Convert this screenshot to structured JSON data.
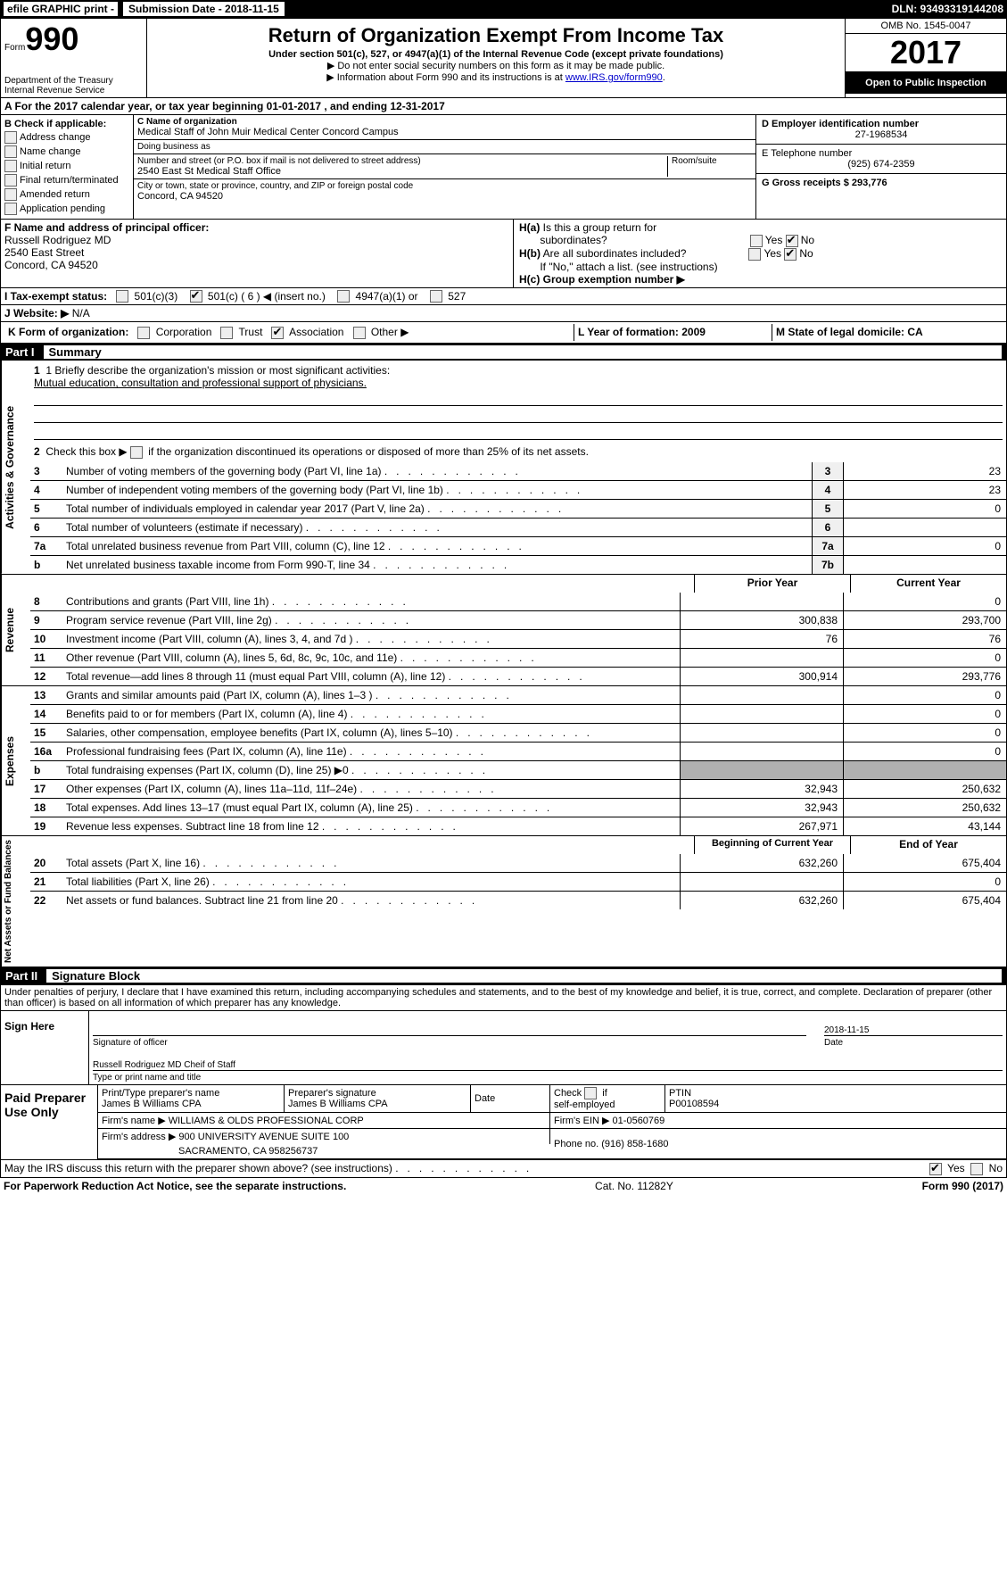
{
  "topbar": {
    "efile": "efile GRAPHIC print -",
    "subdate_label": "Submission Date - 2018-11-15",
    "dln": "DLN: 93493319144208"
  },
  "header": {
    "form_prefix": "Form",
    "form_number": "990",
    "dept1": "Department of the Treasury",
    "dept2": "Internal Revenue Service",
    "title": "Return of Organization Exempt From Income Tax",
    "subtitle": "Under section 501(c), 527, or 4947(a)(1) of the Internal Revenue Code (except private foundations)",
    "note1": "▶ Do not enter social security numbers on this form as it may be made public.",
    "note2_pre": "▶ Information about Form 990 and its instructions is at ",
    "note2_link": "www.IRS.gov/form990",
    "omb": "OMB No. 1545-0047",
    "year": "2017",
    "inspection": "Open to Public Inspection"
  },
  "section_a": "A  For the 2017 calendar year, or tax year beginning 01-01-2017   , and ending 12-31-2017",
  "col_b": {
    "title": "B Check if applicable:",
    "items": [
      "Address change",
      "Name change",
      "Initial return",
      "Final return/terminated",
      "Amended return",
      "Application pending"
    ]
  },
  "col_c": {
    "name_label": "C Name of organization",
    "name": "Medical Staff of John Muir Medical Center Concord Campus",
    "dba_label": "Doing business as",
    "dba": "",
    "addr_label": "Number and street (or P.O. box if mail is not delivered to street address)",
    "room_label": "Room/suite",
    "addr": "2540 East St Medical Staff Office",
    "city_label": "City or town, state or province, country, and ZIP or foreign postal code",
    "city": "Concord, CA  94520"
  },
  "col_d": {
    "ein_label": "D Employer identification number",
    "ein": "27-1968534",
    "phone_label": "E Telephone number",
    "phone": "(925) 674-2359",
    "gross_label": "G Gross receipts $ 293,776"
  },
  "officer": {
    "label": "F  Name and address of principal officer:",
    "name": "Russell Rodriguez MD",
    "addr1": "2540 East Street",
    "addr2": "Concord, CA  94520"
  },
  "h_section": {
    "ha": "H(a)  Is this a group return for subordinates?",
    "hb": "H(b)  Are all subordinates included?",
    "hb_note": "If \"No,\" attach a list. (see instructions)",
    "hc": "H(c)  Group exemption number ▶"
  },
  "tax_status": {
    "label": "I  Tax-exempt status:",
    "c3": "501(c)(3)",
    "c": "501(c) ( 6 ) ◀ (insert no.)",
    "a1": "4947(a)(1) or",
    "s527": "527"
  },
  "website": {
    "label": "J  Website: ▶",
    "value": " N/A"
  },
  "k_org": {
    "label": "K Form of organization:",
    "opts": [
      "Corporation",
      "Trust",
      "Association",
      "Other ▶"
    ],
    "l": "L Year of formation: 2009",
    "m": "M State of legal domicile: CA"
  },
  "part1": {
    "label": "Part I",
    "title": "Summary"
  },
  "governance": {
    "vlabel": "Activities & Governance",
    "l1_label": "1  Briefly describe the organization's mission or most significant activities:",
    "l1_text": "Mutual education, consultation and professional support of physicians.",
    "l2": "Check this box ▶        if the organization discontinued its operations or disposed of more than 25% of its net assets.",
    "lines": [
      {
        "n": "3",
        "d": "Number of voting members of the governing body (Part VI, line 1a)",
        "cn": "3",
        "v": "23"
      },
      {
        "n": "4",
        "d": "Number of independent voting members of the governing body (Part VI, line 1b)",
        "cn": "4",
        "v": "23"
      },
      {
        "n": "5",
        "d": "Total number of individuals employed in calendar year 2017 (Part V, line 2a)",
        "cn": "5",
        "v": "0"
      },
      {
        "n": "6",
        "d": "Total number of volunteers (estimate if necessary)",
        "cn": "6",
        "v": ""
      },
      {
        "n": "7a",
        "d": "Total unrelated business revenue from Part VIII, column (C), line 12",
        "cn": "7a",
        "v": "0"
      },
      {
        "n": "b",
        "d": "Net unrelated business taxable income from Form 990-T, line 34",
        "cn": "7b",
        "v": ""
      }
    ]
  },
  "revenue": {
    "vlabel": "Revenue",
    "hdr_prior": "Prior Year",
    "hdr_cur": "Current Year",
    "lines": [
      {
        "n": "8",
        "d": "Contributions and grants (Part VIII, line 1h)",
        "p": "",
        "c": "0"
      },
      {
        "n": "9",
        "d": "Program service revenue (Part VIII, line 2g)",
        "p": "300,838",
        "c": "293,700"
      },
      {
        "n": "10",
        "d": "Investment income (Part VIII, column (A), lines 3, 4, and 7d )",
        "p": "76",
        "c": "76"
      },
      {
        "n": "11",
        "d": "Other revenue (Part VIII, column (A), lines 5, 6d, 8c, 9c, 10c, and 11e)",
        "p": "",
        "c": "0"
      },
      {
        "n": "12",
        "d": "Total revenue—add lines 8 through 11 (must equal Part VIII, column (A), line 12)",
        "p": "300,914",
        "c": "293,776"
      }
    ]
  },
  "expenses": {
    "vlabel": "Expenses",
    "lines": [
      {
        "n": "13",
        "d": "Grants and similar amounts paid (Part IX, column (A), lines 1–3 )",
        "p": "",
        "c": "0"
      },
      {
        "n": "14",
        "d": "Benefits paid to or for members (Part IX, column (A), line 4)",
        "p": "",
        "c": "0"
      },
      {
        "n": "15",
        "d": "Salaries, other compensation, employee benefits (Part IX, column (A), lines 5–10)",
        "p": "",
        "c": "0"
      },
      {
        "n": "16a",
        "d": "Professional fundraising fees (Part IX, column (A), line 11e)",
        "p": "",
        "c": "0"
      },
      {
        "n": "b",
        "d": "Total fundraising expenses (Part IX, column (D), line 25) ▶0",
        "p": "shade",
        "c": "shade"
      },
      {
        "n": "17",
        "d": "Other expenses (Part IX, column (A), lines 11a–11d, 11f–24e)",
        "p": "32,943",
        "c": "250,632"
      },
      {
        "n": "18",
        "d": "Total expenses. Add lines 13–17 (must equal Part IX, column (A), line 25)",
        "p": "32,943",
        "c": "250,632"
      },
      {
        "n": "19",
        "d": "Revenue less expenses. Subtract line 18 from line 12",
        "p": "267,971",
        "c": "43,144"
      }
    ]
  },
  "netassets": {
    "vlabel": "Net Assets or Fund Balances",
    "hdr_prior": "Beginning of Current Year",
    "hdr_cur": "End of Year",
    "lines": [
      {
        "n": "20",
        "d": "Total assets (Part X, line 16)",
        "p": "632,260",
        "c": "675,404"
      },
      {
        "n": "21",
        "d": "Total liabilities (Part X, line 26)",
        "p": "",
        "c": "0"
      },
      {
        "n": "22",
        "d": "Net assets or fund balances. Subtract line 21 from line 20",
        "p": "632,260",
        "c": "675,404"
      }
    ]
  },
  "part2": {
    "label": "Part II",
    "title": "Signature Block"
  },
  "sig": {
    "perjury": "Under penalties of perjury, I declare that I have examined this return, including accompanying schedules and statements, and to the best of my knowledge and belief, it is true, correct, and complete. Declaration of preparer (other than officer) is based on all information of which preparer has any knowledge.",
    "sign_here": "Sign Here",
    "sig_officer": "Signature of officer",
    "date": "2018-11-15",
    "date_label": "Date",
    "name_title": "Russell Rodriguez MD Cheif of Staff",
    "name_label": "Type or print name and title"
  },
  "paid": {
    "label": "Paid Preparer Use Only",
    "r1": {
      "a": "Print/Type preparer's name",
      "av": "James B Williams CPA",
      "b": "Preparer's signature",
      "bv": "James B Williams CPA",
      "c": "Date",
      "d": "Check        if self-employed",
      "e": "PTIN",
      "ev": "P00108594"
    },
    "r2": {
      "a": "Firm's name     ▶ WILLIAMS & OLDS PROFESSIONAL CORP",
      "b": "Firm's EIN ▶ 01-0560769"
    },
    "r3": {
      "a": "Firm's address ▶ 900 UNIVERSITY AVENUE SUITE 100",
      "b": "Phone no. (916) 858-1680"
    },
    "r4": "SACRAMENTO, CA  958256737"
  },
  "discuss": "May the IRS discuss this return with the preparer shown above? (see instructions)",
  "bottom": {
    "l": "For Paperwork Reduction Act Notice, see the separate instructions.",
    "m": "Cat. No. 11282Y",
    "r": "Form 990 (2017)"
  }
}
